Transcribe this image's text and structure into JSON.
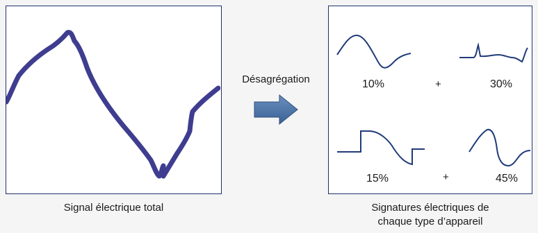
{
  "left_panel": {
    "caption": "Signal électrique total"
  },
  "process": {
    "label": "Désagrégation"
  },
  "right_panel": {
    "caption_line1": "Signatures électriques de",
    "caption_line2": "chaque type d’appareil",
    "signatures": [
      {
        "percent": "10%"
      },
      {
        "percent": "30%"
      },
      {
        "percent": "15%"
      },
      {
        "percent": "45%"
      }
    ],
    "plus_top": "+",
    "plus_bottom": "+"
  },
  "colors": {
    "total_signal": "#3f3d8f",
    "signature_line": "#1f3a7a",
    "panel_border": "#1f2f6e",
    "arrow_fill": "#4f77a8"
  }
}
